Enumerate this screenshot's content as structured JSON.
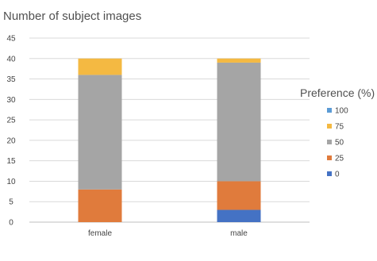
{
  "chart_data": {
    "type": "bar",
    "stacked": true,
    "title": "Number of subject images",
    "xlabel": "",
    "ylabel": "",
    "categories": [
      "female",
      "male"
    ],
    "ylim": [
      0,
      45
    ],
    "yticks": [
      0,
      5,
      10,
      15,
      20,
      25,
      30,
      35,
      40,
      45
    ],
    "grid": true,
    "legend": {
      "title": "Preference (%)",
      "placement": "right",
      "order": [
        "100",
        "75",
        "50",
        "25",
        "0"
      ]
    },
    "series": [
      {
        "name": "0",
        "color": "#4472c4",
        "values": [
          0,
          3
        ]
      },
      {
        "name": "25",
        "color": "#e07b3c",
        "values": [
          8,
          7
        ]
      },
      {
        "name": "50",
        "color": "#a5a5a5",
        "values": [
          28,
          29
        ]
      },
      {
        "name": "75",
        "color": "#f4b942",
        "values": [
          4,
          1
        ]
      },
      {
        "name": "100",
        "color": "#5b9bd5",
        "values": [
          0,
          0
        ]
      }
    ]
  }
}
